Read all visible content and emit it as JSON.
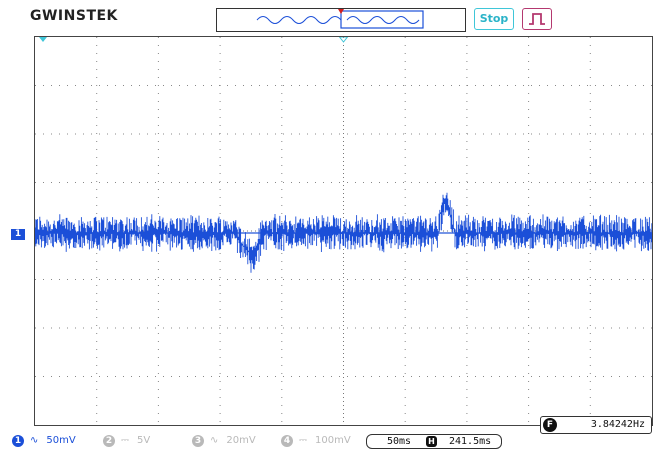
{
  "header": {
    "logo": "GWINSTEK",
    "run_state": "Stop",
    "trigger_icon": "rising-edge-trigger-icon"
  },
  "display": {
    "channel_marker": "1"
  },
  "measurement": {
    "icon_label": "F",
    "frequency": "3.84242Hz"
  },
  "channels": [
    {
      "num": "1",
      "coupling": "∿",
      "scale": "50mV",
      "active": true
    },
    {
      "num": "2",
      "coupling": "⎓",
      "scale": "5V",
      "active": false
    },
    {
      "num": "3",
      "coupling": "∿",
      "scale": "20mV",
      "active": false
    },
    {
      "num": "4",
      "coupling": "⎓",
      "scale": "100mV",
      "active": false
    }
  ],
  "timebase": {
    "scale": "50ms",
    "h_icon": "H",
    "position": "241.5ms"
  },
  "colors": {
    "ch1": "#1b4fd8",
    "run_state": "#2ab3c8",
    "trigger": "#b4386f",
    "inactive": "#b9b9b9"
  }
}
